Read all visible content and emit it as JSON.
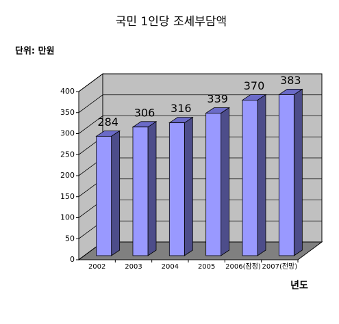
{
  "chart_data": {
    "type": "bar3d",
    "title": "국민 1인당 조세부담액",
    "unit_label": "단위: 만원",
    "x_label": "년도",
    "categories": [
      "2002",
      "2003",
      "2004",
      "2005",
      "2006(잠정)",
      "2007(전망)"
    ],
    "values": [
      284,
      306,
      316,
      339,
      370,
      383
    ],
    "color": "#9999ff",
    "ylim": [
      0,
      400
    ],
    "yticks": [
      0,
      50,
      100,
      150,
      200,
      250,
      300,
      350,
      400
    ],
    "grid": true
  }
}
